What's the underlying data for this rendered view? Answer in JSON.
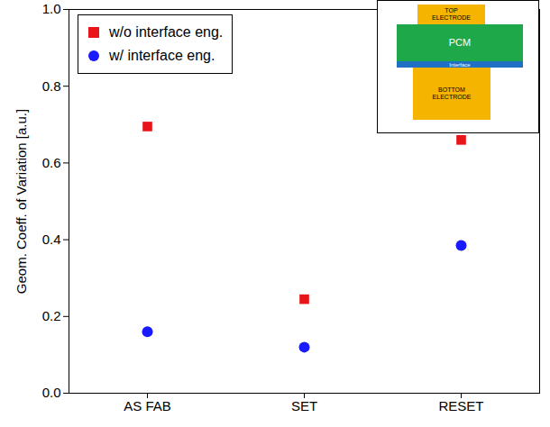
{
  "chart_data": {
    "type": "scatter",
    "y_label": "Geom. Coeff. of Variation [a.u.]",
    "categories": [
      "AS FAB",
      "SET",
      "RESET"
    ],
    "series": [
      {
        "name": "w/o interface eng.",
        "color": "#e8141a",
        "marker": "square",
        "values": [
          0.695,
          0.245,
          0.66
        ]
      },
      {
        "name": "w/ interface eng.",
        "color": "#1a1aff",
        "marker": "circle",
        "values": [
          0.16,
          0.12,
          0.385
        ]
      }
    ],
    "ylim": [
      0,
      1
    ],
    "yticks": [
      {
        "value": 0,
        "label": "0.0"
      },
      0.2,
      0.4,
      0.6,
      0.8,
      {
        "value": 1,
        "label": "1.0"
      }
    ],
    "grid": false,
    "legend": "top-left"
  },
  "inset": {
    "layers": [
      {
        "label": "TOP ELECTRODE",
        "color": "#f4b400"
      },
      {
        "label": "PCM",
        "color": "#1fa84a"
      },
      {
        "label": "Interface",
        "color": "#1f6fc4"
      },
      {
        "label": "BOTTOM ELECTRODE",
        "color": "#f4b400"
      }
    ]
  }
}
